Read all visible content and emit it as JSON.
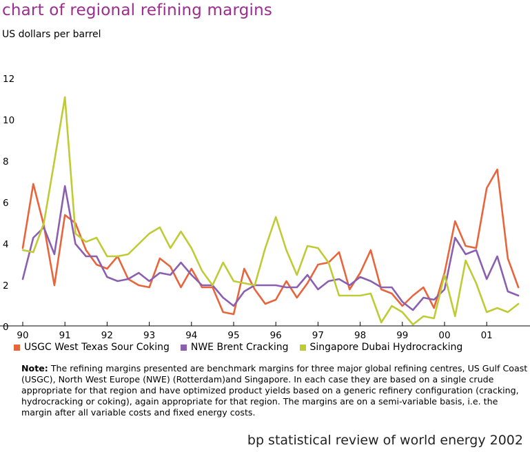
{
  "title": "chart of regional refining margins",
  "subtitle": "US dollars per barrel",
  "note_label": "Note:",
  "note_text": "The refining margins presented are benchmark margins for three major global refining centres, US Gulf Coast (USGC), North West Europe (NWE) (Rotterdam)and Singapore. In each case they are based on a single crude appropriate for that region and have optimized product yields based on a generic refinery configuration (cracking, hydrocracking or coking), again appropriate for that region. The margins are on a semi-variable basis, i.e. the margin after all variable costs and fixed energy costs.",
  "footer": "bp statistical review of world energy 2002",
  "chart_data": {
    "type": "line",
    "title": "chart of regional refining margins",
    "ylabel": "US dollars per barrel",
    "xlabel": "",
    "ylim": [
      0,
      12
    ],
    "y_ticks": [
      "0",
      "2",
      "4",
      "6",
      "8",
      "10",
      "12"
    ],
    "x_ticks": [
      "90",
      "91",
      "92",
      "93",
      "94",
      "95",
      "96",
      "97",
      "98",
      "99",
      "00",
      "01"
    ],
    "grid": false,
    "legend_position": "bottom",
    "x_quarters": [
      "90Q1",
      "90Q2",
      "90Q3",
      "90Q4",
      "91Q1",
      "91Q2",
      "91Q3",
      "91Q4",
      "92Q1",
      "92Q2",
      "92Q3",
      "92Q4",
      "93Q1",
      "93Q2",
      "93Q3",
      "93Q4",
      "94Q1",
      "94Q2",
      "94Q3",
      "94Q4",
      "95Q1",
      "95Q2",
      "95Q3",
      "95Q4",
      "96Q1",
      "96Q2",
      "96Q3",
      "96Q4",
      "97Q1",
      "97Q2",
      "97Q3",
      "97Q4",
      "98Q1",
      "98Q2",
      "98Q3",
      "98Q4",
      "99Q1",
      "99Q2",
      "99Q3",
      "99Q4",
      "00Q1",
      "00Q2",
      "00Q3",
      "00Q4",
      "01Q1",
      "01Q2",
      "01Q3",
      "01Q4"
    ],
    "series": [
      {
        "name": "USGC West Texas Sour Coking",
        "color": "#e8643a",
        "values": [
          3.8,
          6.9,
          4.9,
          2.0,
          5.4,
          5.0,
          3.7,
          3.0,
          2.8,
          3.4,
          2.3,
          2.0,
          1.9,
          3.3,
          2.9,
          1.9,
          2.8,
          1.9,
          1.9,
          0.7,
          0.6,
          2.8,
          1.8,
          1.1,
          1.3,
          2.2,
          1.4,
          2.1,
          3.0,
          3.1,
          3.6,
          1.8,
          2.6,
          3.7,
          1.8,
          1.6,
          1.0,
          1.5,
          1.9,
          0.9,
          2.6,
          5.1,
          3.9,
          3.8,
          6.7,
          7.6,
          3.3,
          1.9
        ]
      },
      {
        "name": "NWE Brent Cracking",
        "color": "#8a5fb0",
        "values": [
          2.3,
          4.3,
          4.8,
          3.5,
          6.8,
          4.0,
          3.4,
          3.4,
          2.4,
          2.2,
          2.3,
          2.6,
          2.2,
          2.6,
          2.5,
          3.1,
          2.5,
          2.0,
          2.0,
          1.4,
          1.0,
          1.7,
          2.0,
          2.0,
          2.0,
          1.9,
          1.9,
          2.5,
          1.8,
          2.2,
          2.3,
          2.0,
          2.4,
          2.2,
          1.9,
          1.9,
          1.2,
          0.8,
          1.4,
          1.3,
          1.8,
          4.3,
          3.5,
          3.7,
          2.3,
          3.4,
          1.7,
          1.5
        ]
      },
      {
        "name": "Singapore Dubai Hydrocracking",
        "color": "#bfcb35",
        "values": [
          3.7,
          3.6,
          5.0,
          8.0,
          11.1,
          4.5,
          4.1,
          4.3,
          3.4,
          3.4,
          3.5,
          4.0,
          4.5,
          4.8,
          3.8,
          4.6,
          3.8,
          2.7,
          2.0,
          3.1,
          2.2,
          2.1,
          2.0,
          3.8,
          5.3,
          3.7,
          2.5,
          3.9,
          3.8,
          3.1,
          1.5,
          1.5,
          1.5,
          1.6,
          0.2,
          1.0,
          0.7,
          0.1,
          0.5,
          0.4,
          2.5,
          0.5,
          3.2,
          2.1,
          0.7,
          0.9,
          0.7,
          1.1
        ]
      }
    ]
  }
}
